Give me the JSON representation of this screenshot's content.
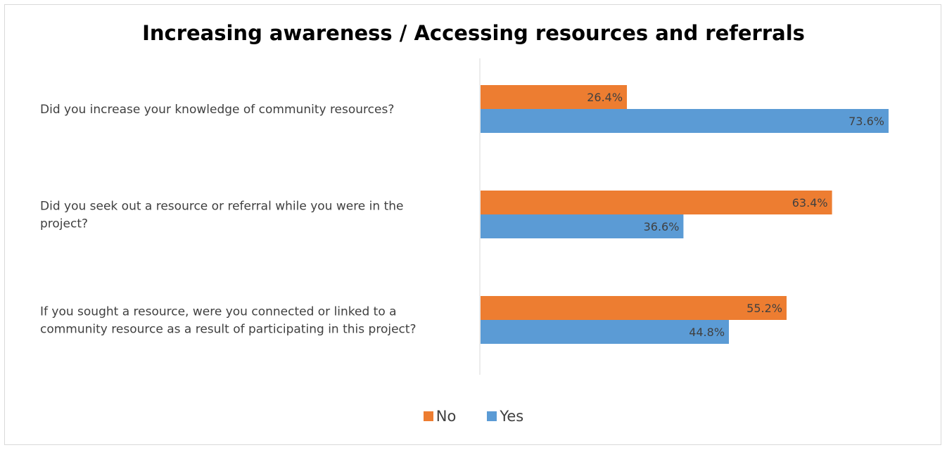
{
  "chart_data": {
    "type": "bar",
    "orientation": "horizontal",
    "title": "Increasing awareness / Accessing resources and referrals",
    "categories": [
      [
        "Did you increase your knowledge of community resources?"
      ],
      [
        "Did you seek out a resource or referral while you were in the",
        "project?"
      ],
      [
        "If you sought a resource, were you connected or linked to a",
        "community resource as a result of participating in this project?"
      ]
    ],
    "series": [
      {
        "name": "No",
        "color": "#ed7d31",
        "values": [
          26.4,
          63.4,
          55.2
        ],
        "labels": [
          "26.4%",
          "63.4%",
          "55.2%"
        ]
      },
      {
        "name": "Yes",
        "color": "#5b9bd5",
        "values": [
          73.6,
          36.6,
          44.8
        ],
        "labels": [
          "73.6%",
          "36.6%",
          "44.8%"
        ]
      }
    ],
    "xlim": [
      0,
      100
    ],
    "legend_position": "bottom",
    "grid": false
  }
}
